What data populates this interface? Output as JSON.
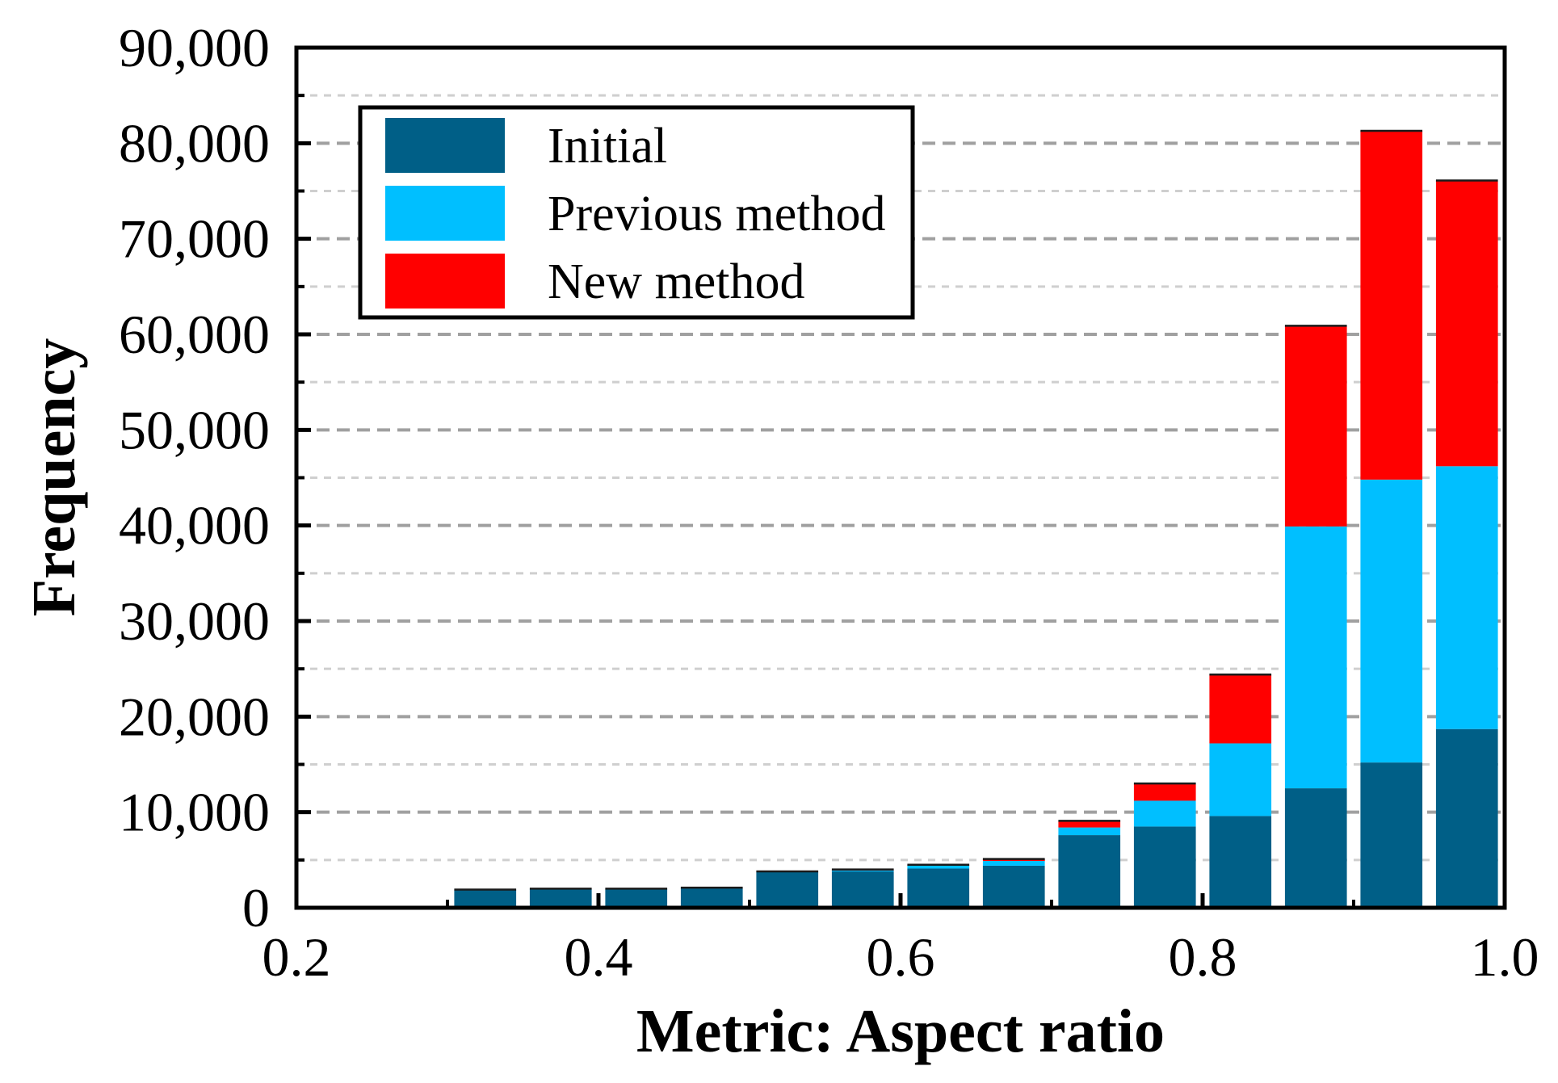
{
  "chart_data": {
    "type": "bar",
    "stacked": true,
    "title": "",
    "xlabel": "Metric: Aspect ratio",
    "ylabel": "Frequency",
    "xlim": [
      0.2,
      1.0
    ],
    "ylim": [
      0,
      90000
    ],
    "xticks": [
      "0.2",
      "0.4",
      "0.6",
      "0.8",
      "1.0"
    ],
    "yticks": [
      "0",
      "10,000",
      "20,000",
      "30,000",
      "40,000",
      "50,000",
      "60,000",
      "70,000",
      "80,000",
      "90,000"
    ],
    "xtick_values": [
      0.2,
      0.4,
      0.6,
      0.8,
      1.0
    ],
    "ytick_values": [
      0,
      10000,
      20000,
      30000,
      40000,
      50000,
      60000,
      70000,
      80000,
      90000
    ],
    "grid": true,
    "legend_position": "top-left",
    "bin_width": 0.05,
    "x": [
      0.325,
      0.375,
      0.425,
      0.475,
      0.525,
      0.575,
      0.625,
      0.675,
      0.725,
      0.775,
      0.825,
      0.875,
      0.925,
      0.975
    ],
    "series": [
      {
        "name": "Initial",
        "color": "#005f87",
        "values": [
          1900,
          2000,
          2000,
          2100,
          3800,
          3800,
          4100,
          4400,
          7600,
          8500,
          9600,
          12500,
          15200,
          18700
        ]
      },
      {
        "name": "Previous method",
        "color": "#00bfff",
        "values": [
          0,
          0,
          0,
          0,
          0,
          100,
          300,
          500,
          800,
          2700,
          7600,
          27400,
          29600,
          27500
        ]
      },
      {
        "name": "New method",
        "color": "#ff0000",
        "values": [
          0,
          0,
          0,
          0,
          0,
          100,
          100,
          200,
          700,
          1800,
          7200,
          21000,
          36500,
          29900
        ]
      }
    ]
  }
}
